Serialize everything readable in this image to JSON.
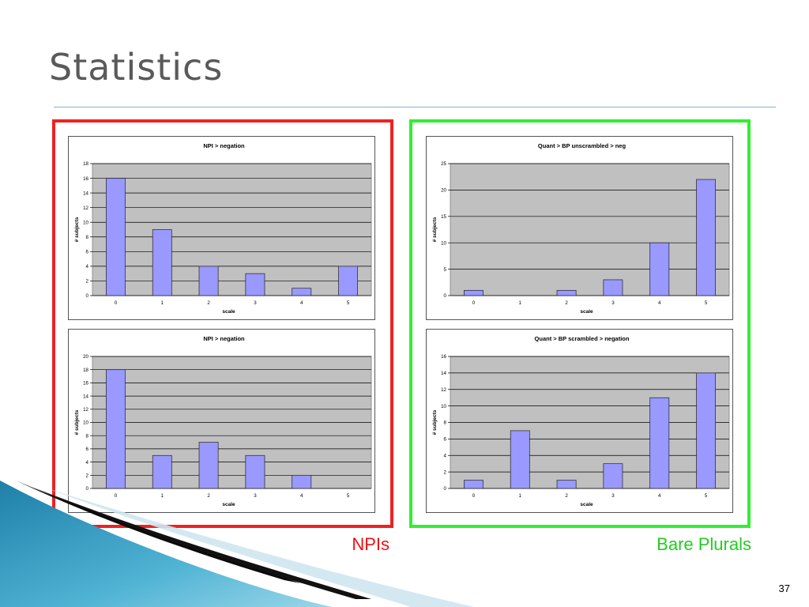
{
  "slide": {
    "title": "Statistics",
    "page_number": "37",
    "group_labels": {
      "npis": "NPIs",
      "bare_plurals": "Bare Plurals"
    },
    "colors": {
      "npis_box": "#ee2222",
      "bare_plurals_box": "#33ee33",
      "bar_fill": "#9999ff",
      "plot_bg": "#c0c0c0"
    }
  },
  "chart_data": [
    {
      "type": "bar",
      "title": "NPI > negation",
      "xlabel": "scale",
      "ylabel": "# subjects",
      "categories": [
        "0",
        "1",
        "2",
        "3",
        "4",
        "5"
      ],
      "values": [
        16,
        9,
        4,
        3,
        1,
        4
      ],
      "ylim": [
        0,
        18
      ],
      "yticks": [
        0,
        2,
        4,
        6,
        8,
        10,
        12,
        14,
        16,
        18
      ],
      "grid": true
    },
    {
      "type": "bar",
      "title": "NPI > negation",
      "xlabel": "scale",
      "ylabel": "# subjects",
      "categories": [
        "0",
        "1",
        "2",
        "3",
        "4",
        "5"
      ],
      "values": [
        18,
        5,
        7,
        5,
        2,
        0
      ],
      "ylim": [
        0,
        20
      ],
      "yticks": [
        0,
        2,
        4,
        6,
        8,
        10,
        12,
        14,
        16,
        18,
        20
      ],
      "grid": true
    },
    {
      "type": "bar",
      "title": "Quant > BP unscrambled > neg",
      "xlabel": "scale",
      "ylabel": "# subjects",
      "categories": [
        "0",
        "1",
        "2",
        "3",
        "4",
        "5"
      ],
      "values": [
        1,
        0,
        1,
        3,
        10,
        22
      ],
      "ylim": [
        0,
        25
      ],
      "yticks": [
        0,
        5,
        10,
        15,
        20,
        25
      ],
      "grid": true
    },
    {
      "type": "bar",
      "title": "Quant > BP scrambled > negation",
      "xlabel": "scale",
      "ylabel": "# subjects",
      "categories": [
        "0",
        "1",
        "2",
        "3",
        "4",
        "5"
      ],
      "values": [
        1,
        7,
        1,
        3,
        11,
        14
      ],
      "ylim": [
        0,
        16
      ],
      "yticks": [
        0,
        2,
        4,
        6,
        8,
        10,
        12,
        14,
        16
      ],
      "grid": true
    }
  ]
}
